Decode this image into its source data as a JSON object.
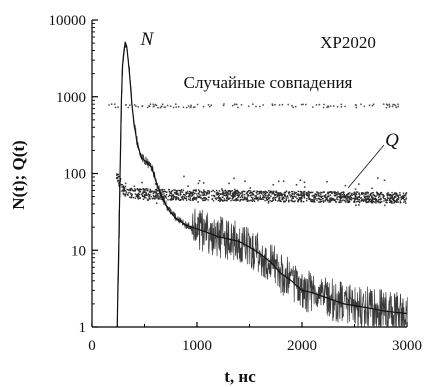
{
  "chart_data": {
    "type": "line",
    "title": "",
    "xlabel": "t, нс",
    "ylabel": "N(t); Q(t)",
    "xlim": [
      0,
      3000
    ],
    "ylim": [
      1,
      10000
    ],
    "yscale": "log",
    "xticks": [
      0,
      1000,
      2000,
      3000
    ],
    "xtick_labels": [
      "0",
      "1000",
      "2000",
      "3000"
    ],
    "yticks": [
      1,
      10,
      100,
      1000,
      10000
    ],
    "ytick_labels": [
      "1",
      "10",
      "100",
      "1000",
      "10000"
    ],
    "grid": false,
    "annotations": {
      "detector": "XP2020",
      "random_coincidences": "Случайные совпадения",
      "n_label": "N",
      "q_label": "Q"
    },
    "series": [
      {
        "name": "N",
        "style": "line",
        "x": [
          240,
          255,
          270,
          280,
          290,
          300,
          310,
          320,
          330,
          345,
          360,
          380,
          400,
          430,
          470,
          520,
          570,
          620,
          680,
          740,
          800,
          900,
          1000,
          1100,
          1200,
          1300,
          1400,
          1500,
          1600,
          1700,
          1800,
          1900,
          2000,
          2100,
          2200,
          2400,
          2600,
          2800,
          3000
        ],
        "y": [
          1,
          12,
          150,
          900,
          2500,
          3500,
          4500,
          5000,
          4500,
          3000,
          1800,
          800,
          450,
          250,
          160,
          140,
          120,
          70,
          45,
          32,
          26,
          21,
          19,
          17,
          15,
          14,
          13,
          11,
          9,
          7,
          5,
          4,
          3,
          2.8,
          2.5,
          2,
          1.8,
          1.6,
          1.5
        ]
      },
      {
        "name": "Q",
        "style": "scatter-band",
        "x": [
          230,
          260,
          300,
          400,
          600,
          1000,
          1500,
          2000,
          2500,
          3000
        ],
        "y": [
          100,
          80,
          60,
          55,
          53,
          52,
          51,
          50,
          49,
          48
        ]
      },
      {
        "name": "Случайные совпадения",
        "style": "scatter",
        "x": [
          150,
          250,
          350,
          450,
          550,
          650,
          750,
          850,
          950,
          1050,
          1150,
          1250,
          1350,
          1450,
          1550,
          1650,
          1750,
          1850,
          1950,
          2050,
          2150,
          2250,
          2350,
          2450,
          2550,
          2650,
          2750,
          2850
        ],
        "y": [
          780,
          770,
          760,
          770,
          740,
          760,
          780,
          750,
          770,
          760,
          740,
          770,
          760,
          780,
          750,
          760,
          770,
          740,
          760,
          750,
          770,
          760,
          740,
          770,
          760,
          750,
          740,
          760
        ]
      }
    ]
  }
}
